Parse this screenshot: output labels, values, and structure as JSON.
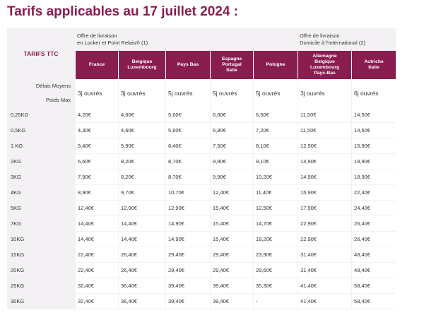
{
  "title": "Tarifs applicables au 17 juillet 2024 :",
  "table": {
    "corner_label": "TARIFS TTC",
    "offer_locker_line1": "Offre de livraison",
    "offer_locker_line2": "en Locker et Point Relais® (1)",
    "offer_home_line1": "Offre de livraison",
    "offer_home_line2": "Domicile à l’International (2)",
    "columns": [
      [
        "France"
      ],
      [
        "Belgique",
        "Luxembourg"
      ],
      [
        "Pays Bas"
      ],
      [
        "Espagne",
        "Portugal",
        "Italie"
      ],
      [
        "Pologne"
      ],
      [
        "Allemagne",
        "Belgique",
        "Luxembourg",
        "Pays-Bas"
      ],
      [
        "Autriche",
        "Italie"
      ]
    ],
    "delais_label": "Délais Moyens",
    "poids_label": "Poids Max",
    "delais": [
      "3j ouvrés",
      "3j ouvrés",
      "5j ouvrés",
      "5j ouvrés",
      "5j ouvrés",
      "3j ouvrés",
      "6j ouvrés"
    ],
    "rows": [
      {
        "weight": "0,25KG",
        "prices": [
          "4,20€",
          "4,60€",
          "5,60€",
          "6,80€",
          "6,50€",
          "11,50€",
          "14,50€"
        ]
      },
      {
        "weight": "0,5KG",
        "prices": [
          "4,30€",
          "4,60€",
          "5,60€",
          "6,80€",
          "7,20€",
          "11,50€",
          "14,50€"
        ]
      },
      {
        "weight": "1 KG",
        "prices": [
          "5,40€",
          "5,90€",
          "6,40€",
          "7,50€",
          "8,10€",
          "12,90€",
          "15,90€"
        ]
      },
      {
        "weight": "2KG",
        "prices": [
          "6,60€",
          "8,20€",
          "8,70€",
          "9,90€",
          "9,10€",
          "14,90€",
          "18,90€"
        ]
      },
      {
        "weight": "3KG",
        "prices": [
          "7,90€",
          "8,20€",
          "8,70€",
          "9,90€",
          "10,20€",
          "14,90€",
          "18,90€"
        ]
      },
      {
        "weight": "4KG",
        "prices": [
          "8,90€",
          "9,70€",
          "10,70€",
          "12,40€",
          "11,40€",
          "15,90€",
          "22,40€"
        ]
      },
      {
        "weight": "5KG",
        "prices": [
          "12,40€",
          "12,90€",
          "12,90€",
          "15,40€",
          "12,50€",
          "17,90€",
          "24,40€"
        ]
      },
      {
        "weight": "7KG",
        "prices": [
          "14,40€",
          "14,40€",
          "14,90€",
          "15,40€",
          "14,70€",
          "22,90€",
          "26,40€"
        ]
      },
      {
        "weight": "10KG",
        "prices": [
          "14,40€",
          "14,40€",
          "14,90€",
          "15,40€",
          "18,20€",
          "22,90€",
          "26,40€"
        ]
      },
      {
        "weight": "15KG",
        "prices": [
          "22,40€",
          "26,40€",
          "29,40€",
          "29,40€",
          "23,90€",
          "31,40€",
          "48,40€"
        ]
      },
      {
        "weight": "20KG",
        "prices": [
          "22,40€",
          "26,40€",
          "29,40€",
          "29,40€",
          "29,60€",
          "31,40€",
          "48,40€"
        ]
      },
      {
        "weight": "25KG",
        "prices": [
          "32,40€",
          "36,40€",
          "39,40€",
          "39,40€",
          "35,30€",
          "41,40€",
          "58,40€"
        ]
      },
      {
        "weight": "30KG",
        "prices": [
          "32,40€",
          "36,40€",
          "39,40€",
          "39,40€",
          "-",
          "41,40€",
          "58,40€"
        ]
      }
    ]
  },
  "colors": {
    "accent": "#8a1d4f",
    "panel": "#f4f1f4"
  }
}
